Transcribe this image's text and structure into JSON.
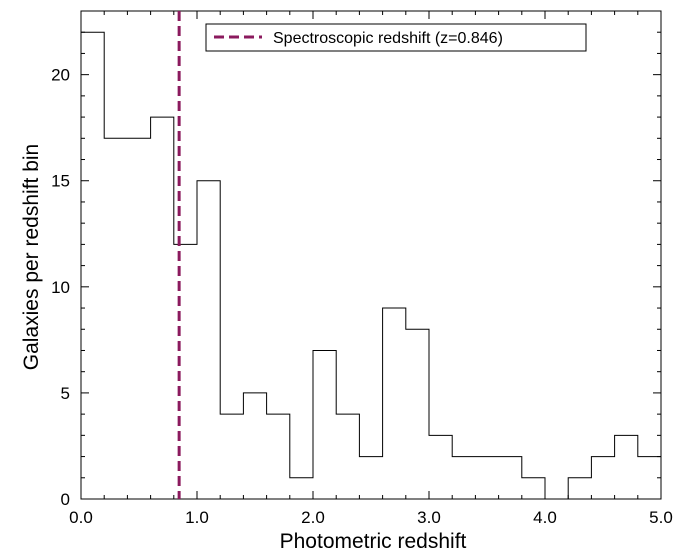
{
  "chart_data": {
    "type": "histogram-step",
    "xlabel": "Photometric redshift",
    "ylabel": "Galaxies per redshift bin",
    "xlim": [
      0.0,
      5.0
    ],
    "ylim": [
      0,
      23.0
    ],
    "x_ticks": [
      0.0,
      1.0,
      2.0,
      3.0,
      4.0,
      5.0
    ],
    "x_tick_labels": [
      "0.0",
      "1.0",
      "2.0",
      "3.0",
      "4.0",
      "5.0"
    ],
    "y_ticks": [
      0,
      5,
      10,
      15,
      20
    ],
    "y_tick_labels": [
      "0",
      "5",
      "10",
      "15",
      "20"
    ],
    "bin_width": 0.2,
    "bin_edges": [
      0.0,
      0.2,
      0.4,
      0.6,
      0.8,
      1.0,
      1.2,
      1.4,
      1.6,
      1.8,
      2.0,
      2.2,
      2.4,
      2.6,
      2.8,
      3.0,
      3.2,
      3.4,
      3.6,
      3.8,
      4.0,
      4.2,
      4.4,
      4.6,
      4.8,
      5.0
    ],
    "counts": [
      22,
      17,
      17,
      18,
      12,
      15,
      4,
      5,
      4,
      1,
      7,
      4,
      2,
      9,
      8,
      3,
      2,
      2,
      2,
      1,
      0,
      1,
      2,
      3,
      2
    ],
    "reference_line": {
      "x": 0.846,
      "label": "Spectroscopic redshift (z=0.846)",
      "color": "#8b1a5e",
      "style": "dashed"
    },
    "histogram_color": "#000000",
    "legend_position": "top-right",
    "grid": false
  }
}
